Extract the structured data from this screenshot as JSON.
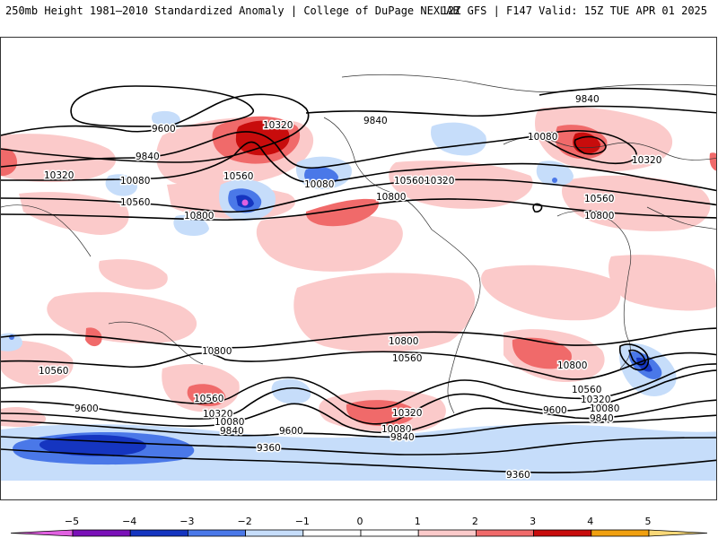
{
  "header": {
    "title": "250mb Height 1981–2010 Standardized Anomaly | College of DuPage NEXLAB",
    "run_info": "12Z GFS | F147 Valid: 15Z TUE APR 01 2025"
  },
  "contour_labels": [
    {
      "id": "c01",
      "text": "9600"
    },
    {
      "id": "c02",
      "text": "10320"
    },
    {
      "id": "c03",
      "text": "9840"
    },
    {
      "id": "c04",
      "text": "10320"
    },
    {
      "id": "c05",
      "text": "10080"
    },
    {
      "id": "c06",
      "text": "10560"
    },
    {
      "id": "c07",
      "text": "10560"
    },
    {
      "id": "c08",
      "text": "10800"
    },
    {
      "id": "c09",
      "text": "10080"
    },
    {
      "id": "c10",
      "text": "10800"
    },
    {
      "id": "c11",
      "text": "10560"
    },
    {
      "id": "c12",
      "text": "10320"
    },
    {
      "id": "c13",
      "text": "9840"
    },
    {
      "id": "c14",
      "text": "9840"
    },
    {
      "id": "c15",
      "text": "10080"
    },
    {
      "id": "c16",
      "text": "10320"
    },
    {
      "id": "c17",
      "text": "10560"
    },
    {
      "id": "c18",
      "text": "10800"
    },
    {
      "id": "c19",
      "text": "10800"
    },
    {
      "id": "c20",
      "text": "10800"
    },
    {
      "id": "c21",
      "text": "10560"
    },
    {
      "id": "c22",
      "text": "10560"
    },
    {
      "id": "c23",
      "text": "10560"
    },
    {
      "id": "c24",
      "text": "9600"
    },
    {
      "id": "c25",
      "text": "10320"
    },
    {
      "id": "c26",
      "text": "10080"
    },
    {
      "id": "c27",
      "text": "9840"
    },
    {
      "id": "c28",
      "text": "9600"
    },
    {
      "id": "c29",
      "text": "9360"
    },
    {
      "id": "c30",
      "text": "10320"
    },
    {
      "id": "c31",
      "text": "10080"
    },
    {
      "id": "c32",
      "text": "9840"
    },
    {
      "id": "c33",
      "text": "10800"
    },
    {
      "id": "c34",
      "text": "10560"
    },
    {
      "id": "c35",
      "text": "10320"
    },
    {
      "id": "c36",
      "text": "10080"
    },
    {
      "id": "c37",
      "text": "9840"
    },
    {
      "id": "c38",
      "text": "9600"
    },
    {
      "id": "c39",
      "text": "9360"
    }
  ],
  "colorbar": {
    "ticks": [
      "−5",
      "−4",
      "−3",
      "−2",
      "−1",
      "0",
      "1",
      "2",
      "3",
      "4",
      "5"
    ],
    "colors": {
      "lt_m5": "#e060e0",
      "m5_m4": "#7a10b8",
      "m4_m3": "#1535c0",
      "m3_m2": "#4a78e8",
      "m2_m1": "#c6ddfa",
      "m1_0": "#ffffff",
      "p0_1": "#ffffff",
      "p1_2": "#fbcaca",
      "p2_3": "#f06a6a",
      "p3_4": "#c80c0c",
      "p4_5": "#f0a010",
      "gt_5": "#f8d878"
    }
  }
}
